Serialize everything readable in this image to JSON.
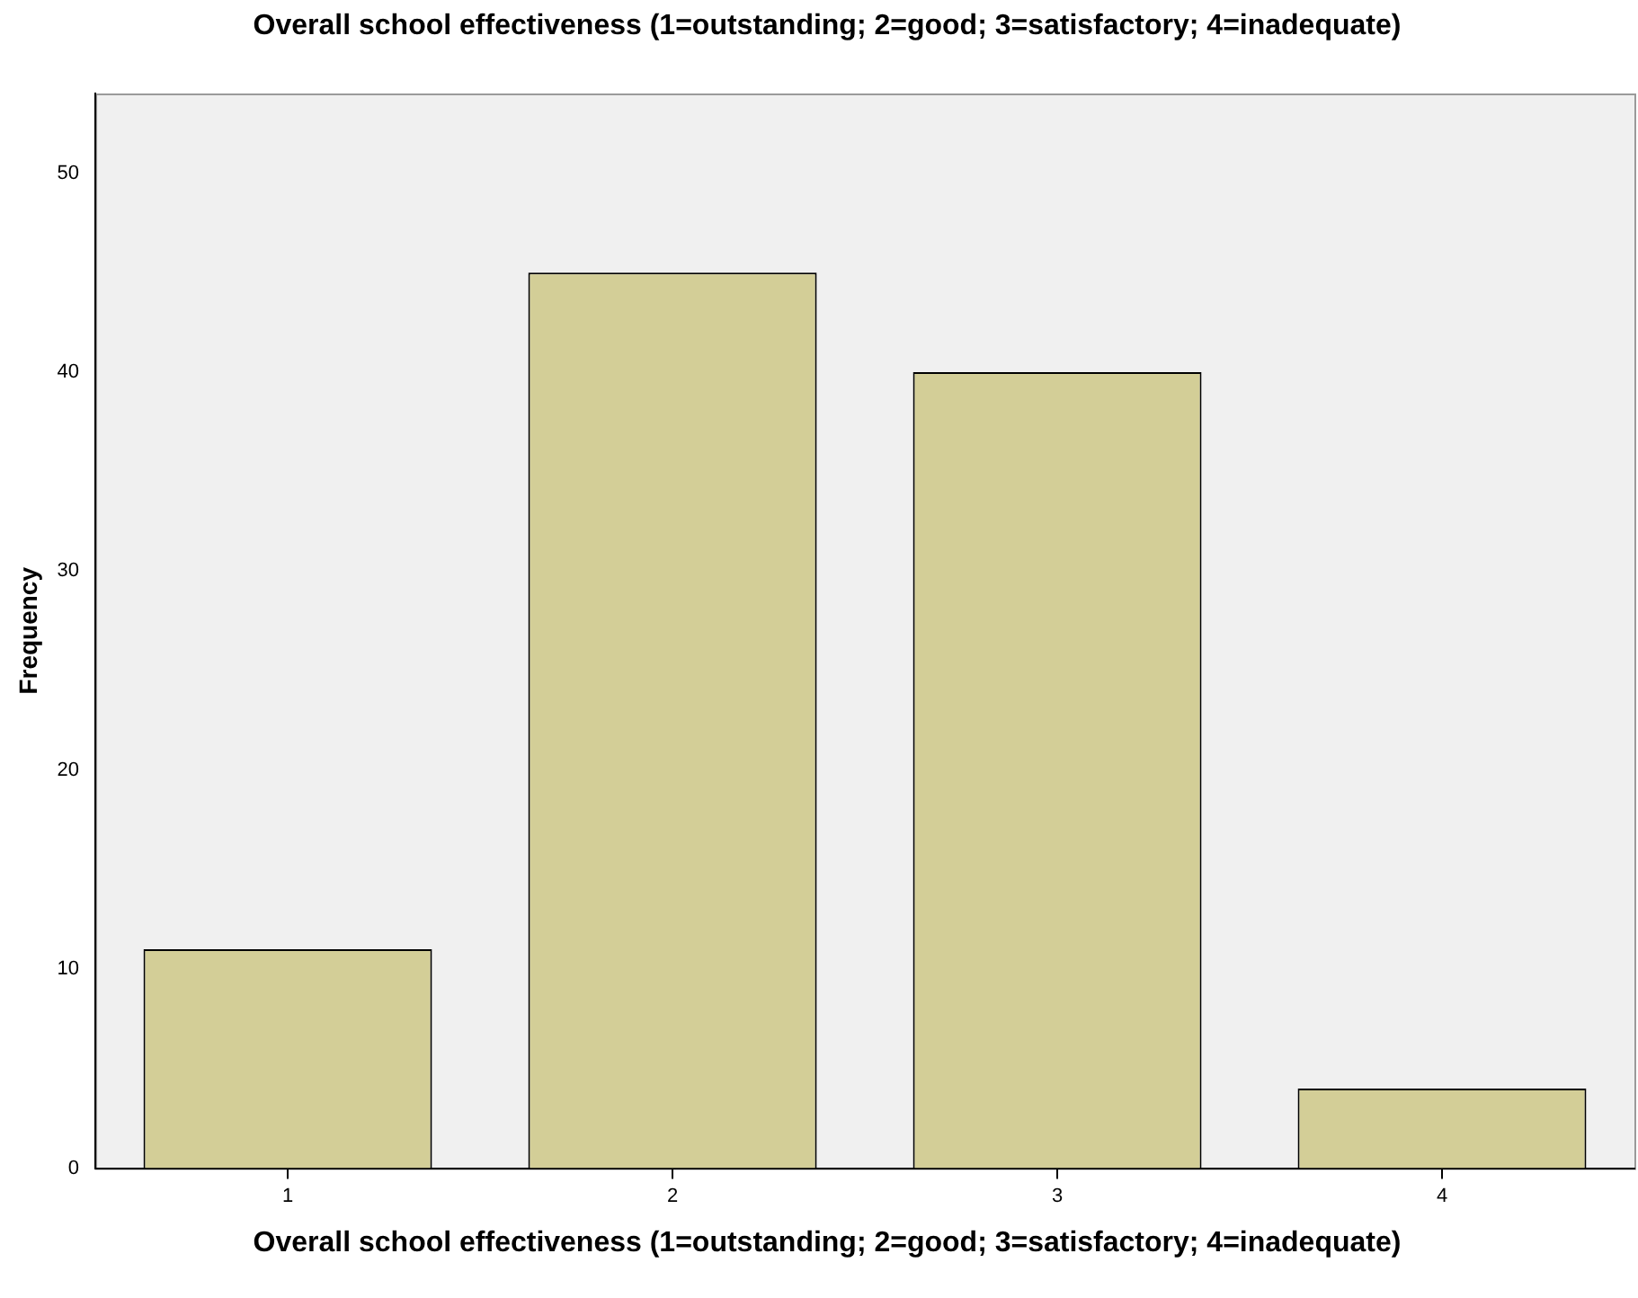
{
  "chart_data": {
    "type": "bar",
    "title": "Overall school effectiveness (1=outstanding; 2=good; 3=satisfactory; 4=inadequate)",
    "xlabel": "Overall school effectiveness (1=outstanding; 2=good; 3=satisfactory; 4=inadequate)",
    "ylabel": "Frequency",
    "categories": [
      "1",
      "2",
      "3",
      "4"
    ],
    "values": [
      11,
      45,
      40,
      4
    ],
    "color": "#d3ce97",
    "ylim": [
      0,
      54
    ],
    "yticks": [
      0,
      10,
      20,
      30,
      40,
      50
    ],
    "grid": false,
    "legend": false
  }
}
